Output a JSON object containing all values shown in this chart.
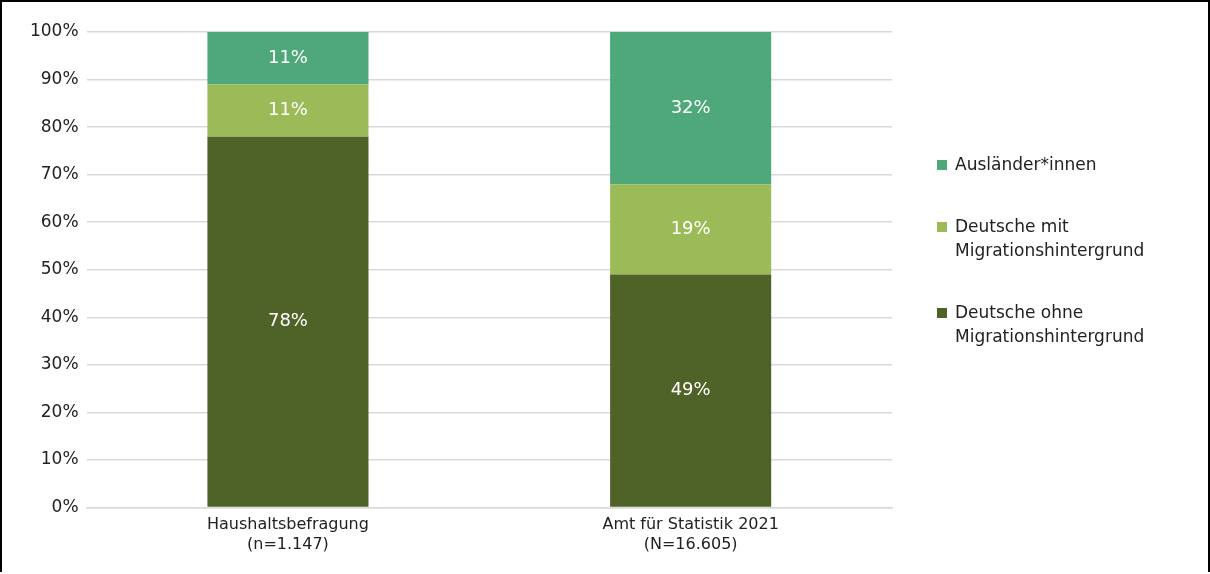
{
  "chart_data": {
    "type": "bar",
    "stacked": true,
    "categories": [
      "Haushaltsbefragung\n(n=1.147)",
      "Amt für Statistik 2021\n(N=16.605)"
    ],
    "series": [
      {
        "name": "Deutsche ohne Migrationshintergrund",
        "color": "#4f6228",
        "values": [
          78,
          49
        ],
        "value_labels": [
          "78%",
          "49%"
        ]
      },
      {
        "name": "Deutsche mit Migrationshintergrund",
        "color": "#9bbb59",
        "values": [
          11,
          19
        ],
        "value_labels": [
          "11%",
          "19%"
        ]
      },
      {
        "name": "Ausländer*innen",
        "color": "#4ea87a",
        "values": [
          11,
          32
        ],
        "value_labels": [
          "11%",
          "32%"
        ]
      }
    ],
    "ylim": [
      0,
      100
    ],
    "yticks": [
      {
        "value": 0,
        "label": "0%"
      },
      {
        "value": 10,
        "label": "10%"
      },
      {
        "value": 20,
        "label": "20%"
      },
      {
        "value": 30,
        "label": "30%"
      },
      {
        "value": 40,
        "label": "40%"
      },
      {
        "value": 50,
        "label": "50%"
      },
      {
        "value": 60,
        "label": "60%"
      },
      {
        "value": 70,
        "label": "70%"
      },
      {
        "value": 80,
        "label": "80%"
      },
      {
        "value": 90,
        "label": "90%"
      },
      {
        "value": 100,
        "label": "100%"
      }
    ],
    "grid": "y",
    "legend": "right"
  }
}
